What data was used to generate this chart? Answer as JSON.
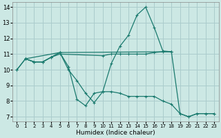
{
  "background_color": "#cce8e4",
  "grid_color": "#aacccc",
  "line_color": "#1a7a6e",
  "xlabel": "Humidex (Indice chaleur)",
  "xlim": [
    -0.5,
    23.5
  ],
  "ylim": [
    6.7,
    14.3
  ],
  "yticks": [
    7,
    8,
    9,
    10,
    11,
    12,
    13,
    14
  ],
  "xticks": [
    0,
    1,
    2,
    3,
    4,
    5,
    6,
    7,
    8,
    9,
    10,
    11,
    12,
    13,
    14,
    15,
    16,
    17,
    18,
    19,
    20,
    21,
    22,
    23
  ],
  "line1_x": [
    0,
    1,
    2,
    3,
    4,
    5,
    6,
    7,
    8,
    9,
    10,
    11,
    12,
    13,
    14,
    15,
    16,
    17,
    18
  ],
  "line1_y": [
    10.0,
    10.7,
    10.5,
    10.5,
    10.8,
    11.1,
    10.2,
    8.1,
    7.7,
    8.5,
    8.6,
    10.4,
    11.5,
    12.2,
    13.5,
    14.0,
    12.7,
    11.2,
    11.15
  ],
  "line2_x": [
    0,
    1,
    2,
    3,
    4,
    5,
    10,
    11,
    12,
    13,
    14,
    15,
    16,
    17,
    18
  ],
  "line2_y": [
    10.0,
    10.7,
    10.5,
    10.5,
    10.8,
    11.0,
    10.9,
    11.0,
    11.0,
    11.0,
    11.0,
    11.0,
    11.1,
    11.15,
    11.15
  ],
  "line3_x": [
    1,
    2,
    3,
    4,
    5,
    6,
    7,
    8,
    9,
    10,
    11,
    12,
    13,
    14,
    15,
    16,
    17,
    18,
    19,
    20,
    21,
    22,
    23
  ],
  "line3_y": [
    10.7,
    10.5,
    10.5,
    10.8,
    11.1,
    10.0,
    9.3,
    8.5,
    7.9,
    8.6,
    8.6,
    8.5,
    8.3,
    8.3,
    8.3,
    8.3,
    8.0,
    7.8,
    7.2,
    7.0,
    7.2,
    7.2,
    7.2
  ],
  "line4_x": [
    1,
    5,
    18,
    19,
    20,
    21,
    22,
    23
  ],
  "line4_y": [
    10.7,
    11.1,
    11.15,
    7.2,
    7.0,
    7.2,
    7.2,
    7.2
  ]
}
